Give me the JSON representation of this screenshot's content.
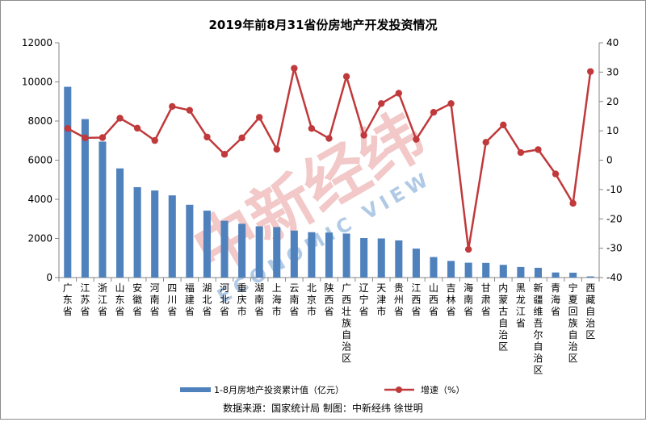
{
  "chart_data": {
    "type": "bar+line",
    "title": "2019年前8月31省份房地产开发投资情况",
    "categories": [
      "广东省",
      "江苏省",
      "浙江省",
      "山东省",
      "安徽省",
      "河南省",
      "四川省",
      "福建省",
      "湖北省",
      "河北省",
      "重庆市",
      "湖南省",
      "上海市",
      "云南省",
      "北京市",
      "陕西省",
      "广西壮族自治区",
      "辽宁省",
      "天津市",
      "贵州省",
      "江西省",
      "山西省",
      "吉林省",
      "海南省",
      "甘肃省",
      "内蒙古自治区",
      "黑龙江省",
      "新疆维吾尔自治区",
      "青海省",
      "宁夏回族自治区",
      "西藏自治区"
    ],
    "series": [
      {
        "name": "1-8月房地产投资累计值（亿元）",
        "type": "bar",
        "axis": "left",
        "color": "#4f81bd",
        "values": [
          9750,
          8100,
          6950,
          5580,
          4620,
          4450,
          4200,
          3720,
          3420,
          2900,
          2750,
          2620,
          2580,
          2400,
          2320,
          2300,
          2250,
          2020,
          2000,
          1900,
          1480,
          1050,
          850,
          760,
          750,
          650,
          540,
          500,
          260,
          250,
          60
        ]
      },
      {
        "name": "增速（%）",
        "type": "line",
        "axis": "right",
        "color": "#c0393b",
        "values": [
          10.8,
          7.6,
          7.7,
          14.3,
          10.9,
          6.7,
          18.3,
          17.0,
          7.9,
          2.0,
          7.6,
          14.6,
          3.7,
          31.3,
          10.8,
          7.4,
          28.5,
          8.5,
          19.3,
          22.8,
          7.1,
          16.3,
          19.3,
          -30.4,
          6.1,
          12.0,
          2.6,
          3.6,
          -4.7,
          -14.7,
          30.2
        ]
      }
    ],
    "y_left": {
      "min": 0,
      "max": 12000,
      "ticks": [
        "0",
        "2000",
        "4000",
        "6000",
        "8000",
        "10000",
        "12000"
      ]
    },
    "y_right": {
      "min": -40,
      "max": 40,
      "ticks": [
        "-40",
        "-30",
        "-20",
        "-10",
        "0",
        "10",
        "20",
        "30",
        "40"
      ]
    },
    "legend": {
      "position": "bottom"
    },
    "grid": false,
    "source_note": "数据来源：国家统计局   制图：中新经纬 徐世明",
    "watermark": {
      "main": "中新经纬",
      "sub": "ECONOMIC VIEW"
    }
  }
}
